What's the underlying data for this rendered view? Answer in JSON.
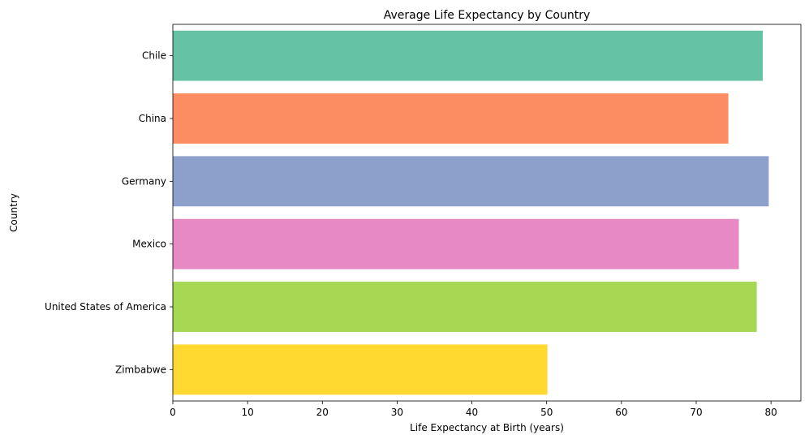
{
  "chart_data": {
    "type": "bar",
    "orientation": "horizontal",
    "title": "Average Life Expectancy by Country",
    "xlabel": "Life Expectancy at Birth (years)",
    "ylabel": "Country",
    "xlim": [
      0,
      84
    ],
    "xticks": [
      "0",
      "10",
      "20",
      "30",
      "40",
      "50",
      "60",
      "70",
      "80"
    ],
    "categories": [
      "Chile",
      "China",
      "Germany",
      "Mexico",
      "United States of America",
      "Zimbabwe"
    ],
    "values": [
      78.9,
      74.3,
      79.7,
      75.7,
      78.1,
      50.1
    ],
    "colors": [
      "#66c2a5",
      "#fc8d62",
      "#8da0cb",
      "#e78ac3",
      "#a6d854",
      "#ffd92f"
    ],
    "grid": false,
    "legend": "none"
  }
}
